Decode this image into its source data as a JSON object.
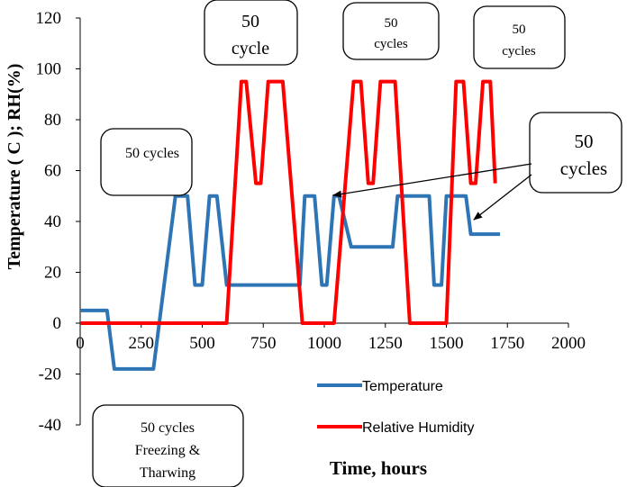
{
  "chart_data": {
    "type": "line",
    "title": "",
    "xlabel": "Time, hours",
    "ylabel": "Temperature ( C ); RH(%)",
    "xlim": [
      0,
      2000
    ],
    "ylim": [
      -40,
      120
    ],
    "xticks": [
      "0",
      "250",
      "500",
      "750",
      "1000",
      "1250",
      "1500",
      "1750",
      "2000"
    ],
    "yticks": [
      "120",
      "100",
      "80",
      "60",
      "40",
      "20",
      "0",
      "-20",
      "-40"
    ],
    "grid": false,
    "legend_position": "bottom-right",
    "series": [
      {
        "name": "Temperature",
        "color": "#2E75B6",
        "x": [
          0,
          110,
          140,
          300,
          390,
          440,
          470,
          500,
          530,
          560,
          600,
          630,
          700,
          900,
          920,
          960,
          990,
          1010,
          1040,
          1060,
          1110,
          1140,
          1280,
          1300,
          1430,
          1450,
          1480,
          1500,
          1520,
          1540,
          1580,
          1600,
          1720
        ],
        "y": [
          5,
          5,
          -18,
          -18,
          50,
          50,
          15,
          15,
          50,
          50,
          15,
          15,
          15,
          15,
          50,
          50,
          15,
          15,
          50,
          50,
          30,
          30,
          30,
          50,
          50,
          15,
          15,
          50,
          50,
          50,
          50,
          35,
          35
        ]
      },
      {
        "name": "Relative Humidity",
        "color": "#FF0000",
        "x": [
          0,
          600,
          660,
          680,
          720,
          740,
          770,
          800,
          830,
          910,
          1040,
          1120,
          1150,
          1180,
          1200,
          1230,
          1260,
          1290,
          1350,
          1500,
          1540,
          1570,
          1600,
          1620,
          1650,
          1680,
          1700
        ],
        "y": [
          0,
          0,
          95,
          95,
          55,
          55,
          95,
          95,
          95,
          0,
          0,
          95,
          95,
          55,
          55,
          95,
          95,
          95,
          0,
          0,
          95,
          95,
          55,
          55,
          95,
          95,
          55
        ]
      }
    ],
    "annotations": {
      "a1": "50 cycles",
      "a2_line1": "50",
      "a2_line2": "cycle",
      "a3_line1": "50",
      "a3_line2": "cycles",
      "a4_line1": "50",
      "a4_line2": "cycles",
      "a5_line1": "50",
      "a5_line2": "cycles",
      "a6_line1": "50",
      "a6_line2": "cycles",
      "a7_line1": "50 cycles",
      "a7_line2": "Freezing &",
      "a7_line3": "Tharwing"
    }
  }
}
